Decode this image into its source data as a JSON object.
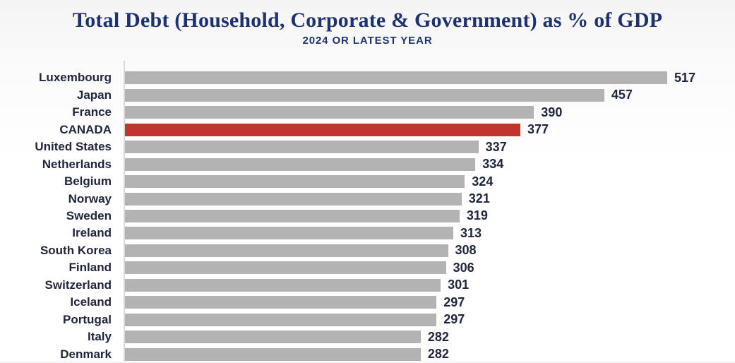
{
  "title": "Total Debt (Household, Corporate & Government) as % of GDP",
  "subtitle": "2024 OR LATEST YEAR",
  "colors": {
    "title": "#1e3270",
    "text": "#20263c",
    "bar": "#b3b3b3",
    "highlight": "#c13430",
    "axis": "#d8d8d8"
  },
  "chart_data": {
    "type": "bar",
    "orientation": "horizontal",
    "title": "Total Debt (Household, Corporate & Government) as % of GDP",
    "subtitle": "2024 OR LATEST YEAR",
    "categories": [
      "Luxembourg",
      "Japan",
      "France",
      "CANADA",
      "United States",
      "Netherlands",
      "Belgium",
      "Norway",
      "Sweden",
      "Ireland",
      "South Korea",
      "Finland",
      "Switzerland",
      "Iceland",
      "Portugal",
      "Italy",
      "Denmark"
    ],
    "values": [
      517,
      457,
      390,
      377,
      337,
      334,
      324,
      321,
      319,
      313,
      308,
      306,
      301,
      297,
      297,
      282,
      282
    ],
    "highlighted_category": "CANADA",
    "data_labels": true,
    "value_range": [
      0,
      517
    ],
    "grid": false,
    "legend": false
  }
}
